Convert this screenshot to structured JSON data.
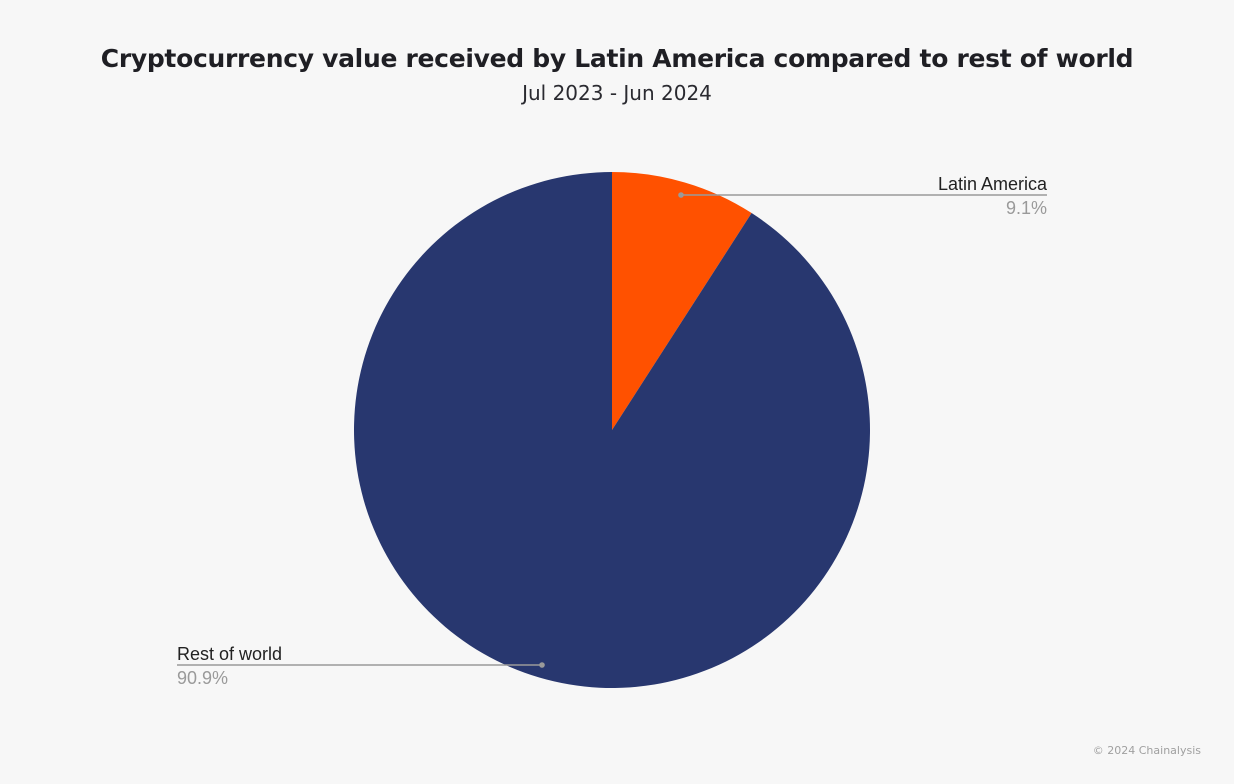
{
  "chart_data": {
    "type": "pie",
    "title": "Cryptocurrency value received by Latin America compared to rest of world",
    "subtitle": "Jul 2023 - Jun 2024",
    "slices": [
      {
        "label": "Latin America",
        "value": 9.1,
        "value_label": "9.1%",
        "color": "#ff5100"
      },
      {
        "label": "Rest of world",
        "value": 90.9,
        "value_label": "90.9%",
        "color": "#28376f"
      }
    ]
  },
  "footer": {
    "copyright": "© 2024 Chainalysis"
  }
}
